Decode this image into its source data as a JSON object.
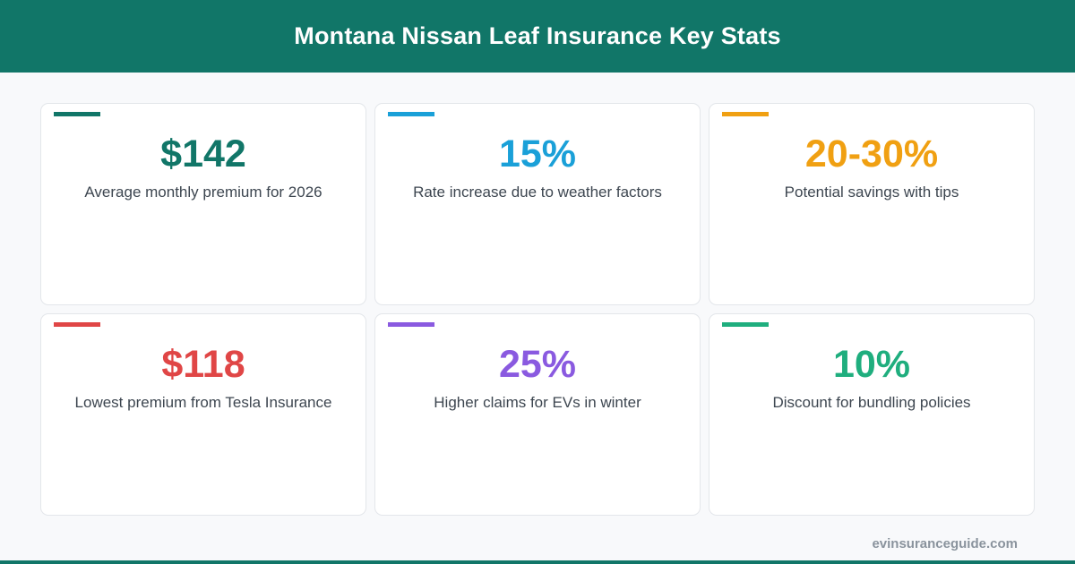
{
  "header": {
    "title": "Montana Nissan Leaf Insurance Key Stats"
  },
  "stats": [
    {
      "value": "$142",
      "label": "Average monthly premium for 2026",
      "color": "#117668"
    },
    {
      "value": "15%",
      "label": "Rate increase due to weather factors",
      "color": "#1aa0d8"
    },
    {
      "value": "20-30%",
      "label": "Potential savings with tips",
      "color": "#f0a012"
    },
    {
      "value": "$118",
      "label": "Lowest premium from Tesla Insurance",
      "color": "#e04646"
    },
    {
      "value": "25%",
      "label": "Higher claims for EVs in winter",
      "color": "#8a5ae0"
    },
    {
      "value": "10%",
      "label": "Discount for bundling policies",
      "color": "#1fae7e"
    }
  ],
  "footer": {
    "url": "evinsuranceguide.com"
  }
}
